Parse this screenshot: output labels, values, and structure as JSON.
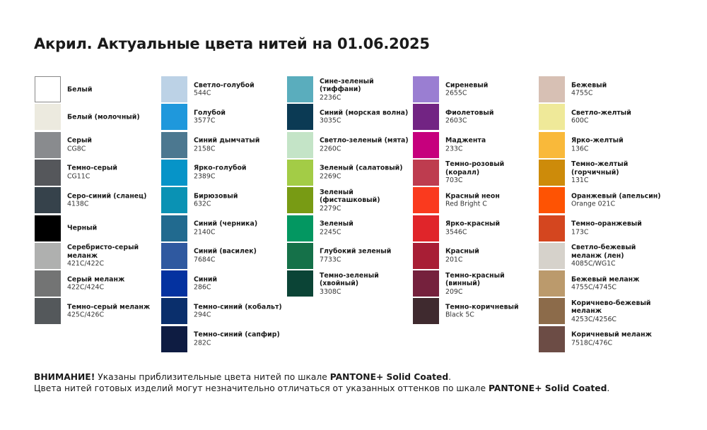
{
  "title": "Акрил. Актуальные цвета нитей на 01.06.2025",
  "columns": [
    [
      {
        "name": "Белый",
        "code": "",
        "color": "#ffffff"
      },
      {
        "name": "Белый (молочный)",
        "code": "",
        "color": "#eceadf"
      },
      {
        "name": "Серый",
        "code": "CG8C",
        "color": "#898b8e"
      },
      {
        "name": "Темно-серый",
        "code": "CG11C",
        "color": "#55575b"
      },
      {
        "name": "Серо-синий (сланец)",
        "code": "4138C",
        "color": "#36424b"
      },
      {
        "name": "Черный",
        "code": "",
        "color": "#000000"
      },
      {
        "name": "Серебристо-серый\nмеланж",
        "code": "421C/422C",
        "color": "#afb0af"
      },
      {
        "name": "Серый меланж",
        "code": "422C/424C",
        "color": "#737474"
      },
      {
        "name": "Темно-серый меланж",
        "code": "425C/426C",
        "color": "#54585b"
      }
    ],
    [
      {
        "name": "Светло-голубой",
        "code": "544C",
        "color": "#bcd2e6"
      },
      {
        "name": "Голубой",
        "code": "3577C",
        "color": "#1f98dc"
      },
      {
        "name": "Синий дымчатый",
        "code": "2158C",
        "color": "#4c7890"
      },
      {
        "name": "Ярко-голубой",
        "code": "2389C",
        "color": "#0694c8"
      },
      {
        "name": "Бирюзовый",
        "code": "632C",
        "color": "#0a92b4"
      },
      {
        "name": "Синий (черника)",
        "code": "2140C",
        "color": "#216a8f"
      },
      {
        "name": "Синий (василек)",
        "code": "7684C",
        "color": "#2f59a0"
      },
      {
        "name": "Синий",
        "code": "286C",
        "color": "#0432a0"
      },
      {
        "name": "Темно-синий (кобальт)",
        "code": "294C",
        "color": "#0a2f6c"
      },
      {
        "name": "Темно-синий (сапфир)",
        "code": "282C",
        "color": "#0e1c42"
      }
    ],
    [
      {
        "name": "Сине-зеленый (тиффани)",
        "code": "2236C",
        "color": "#5aadbd"
      },
      {
        "name": "Синий (морская волна)",
        "code": "3035C",
        "color": "#0b3a54"
      },
      {
        "name": "Светло-зеленый (мята)",
        "code": "2260C",
        "color": "#c4e4c7"
      },
      {
        "name": "Зеленый (салатовый)",
        "code": "2269C",
        "color": "#a3cc46"
      },
      {
        "name": "Зеленый (фисташковый)",
        "code": "2279C",
        "color": "#789b14"
      },
      {
        "name": "Зеленый",
        "code": "2245C",
        "color": "#039761"
      },
      {
        "name": "Глубокий зеленый",
        "code": "7733C",
        "color": "#157149"
      },
      {
        "name": "Темно-зеленый (хвойный)",
        "code": "3308C",
        "color": "#0b4436"
      }
    ],
    [
      {
        "name": "Сиреневый",
        "code": "2655C",
        "color": "#9a7ed2"
      },
      {
        "name": "Фиолетовый",
        "code": "2603C",
        "color": "#722483"
      },
      {
        "name": "Маджента",
        "code": "233C",
        "color": "#c6007d"
      },
      {
        "name": "Темно-розовый (коралл)",
        "code": "703C",
        "color": "#be3c4f"
      },
      {
        "name": "Красный неон",
        "code": "Red Bright C",
        "color": "#fa3a1e"
      },
      {
        "name": "Ярко-красный",
        "code": "3546C",
        "color": "#e0252a"
      },
      {
        "name": "Красный",
        "code": "201C",
        "color": "#a81e35"
      },
      {
        "name": "Темно-красный (винный)",
        "code": "209C",
        "color": "#75213d"
      },
      {
        "name": "Темно-коричневый",
        "code": "Black 5C",
        "color": "#3f2a2f"
      }
    ],
    [
      {
        "name": "Бежевый",
        "code": "4755C",
        "color": "#d7c0b4"
      },
      {
        "name": "Светло-желтый",
        "code": "600C",
        "color": "#efe999"
      },
      {
        "name": "Ярко-желтый",
        "code": "136C",
        "color": "#f9b93a"
      },
      {
        "name": "Темно-желтый (горчичный)",
        "code": "131C",
        "color": "#cd8b0a"
      },
      {
        "name": "Оранжевый (апельсин)",
        "code": "Orange 021C",
        "color": "#fe5303"
      },
      {
        "name": "Темно-оранжевый",
        "code": "173C",
        "color": "#d4461f"
      },
      {
        "name": "Светло-бежевый меланж (лен)",
        "code": "4085C/WG1C",
        "color": "#d6d2cb"
      },
      {
        "name": "Бежевый меланж",
        "code": "4755C/4745C",
        "color": "#bb9a6c"
      },
      {
        "name": "Коричнево-бежевый меланж",
        "code": "4253C/4256C",
        "color": "#8c6b4a"
      },
      {
        "name": "Коричневый меланж",
        "code": "7518C/476C",
        "color": "#6c4c45"
      }
    ]
  ],
  "footer": {
    "line1_bold": "ВНИМАНИЕ!",
    "line1_text": " Указаны приблизительные цвета нитей по шкале ",
    "line1_scale": "PANTONE+ Solid Coated",
    "line1_end": ".",
    "line2_text": "Цвета нитей готовых изделий могут незначительно отличаться от указанных оттенков по шкале ",
    "line2_scale": "PANTONE+ Solid Coated",
    "line2_end": "."
  }
}
